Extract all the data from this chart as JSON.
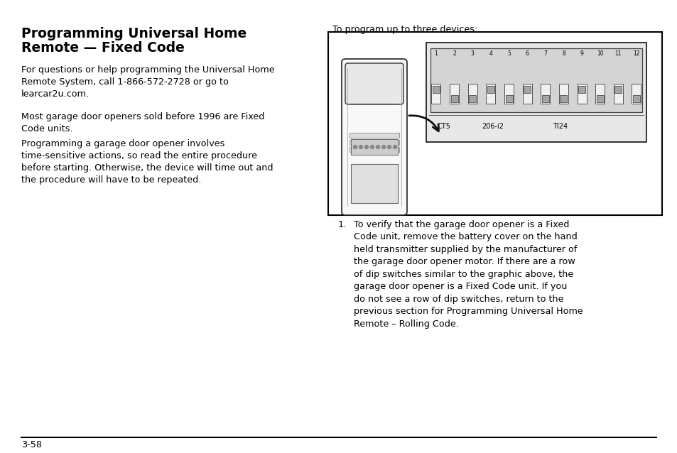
{
  "bg_color": "#ffffff",
  "title_line1": "Programming Universal Home",
  "title_line2": "Remote — Fixed Code",
  "para1": "For questions or help programming the Universal Home\nRemote System, call 1-866-572-2728 or go to\nlearcar2u.com.",
  "para2": "Most garage door openers sold before 1996 are Fixed\nCode units.",
  "para3": "Programming a garage door opener involves\ntime-sensitive actions, so read the entire procedure\nbefore starting. Otherwise, the device will time out and\nthe procedure will have to be repeated.",
  "right_label": "To program up to three devices:",
  "item1_num": "1.",
  "item1_text": "To verify that the garage door opener is a Fixed\nCode unit, remove the battery cover on the hand\nheld transmitter supplied by the manufacturer of\nthe garage door opener motor. If there are a row\nof dip switches similar to the graphic above, the\ngarage door opener is a Fixed Code unit. If you\ndo not see a row of dip switches, return to the\nprevious section for Programming Universal Home\nRemote – Rolling Code.",
  "page_num": "3-58",
  "text_color": "#000000",
  "font_size_title": 13.5,
  "font_size_body": 9.2,
  "font_size_page": 9.2,
  "dip_labels": [
    "CT5",
    "206-i2",
    "TI24"
  ],
  "switch_nums": [
    "1",
    "2",
    "3",
    "4",
    "5",
    "6",
    "7",
    "8",
    "9",
    "10",
    "11",
    "12"
  ]
}
